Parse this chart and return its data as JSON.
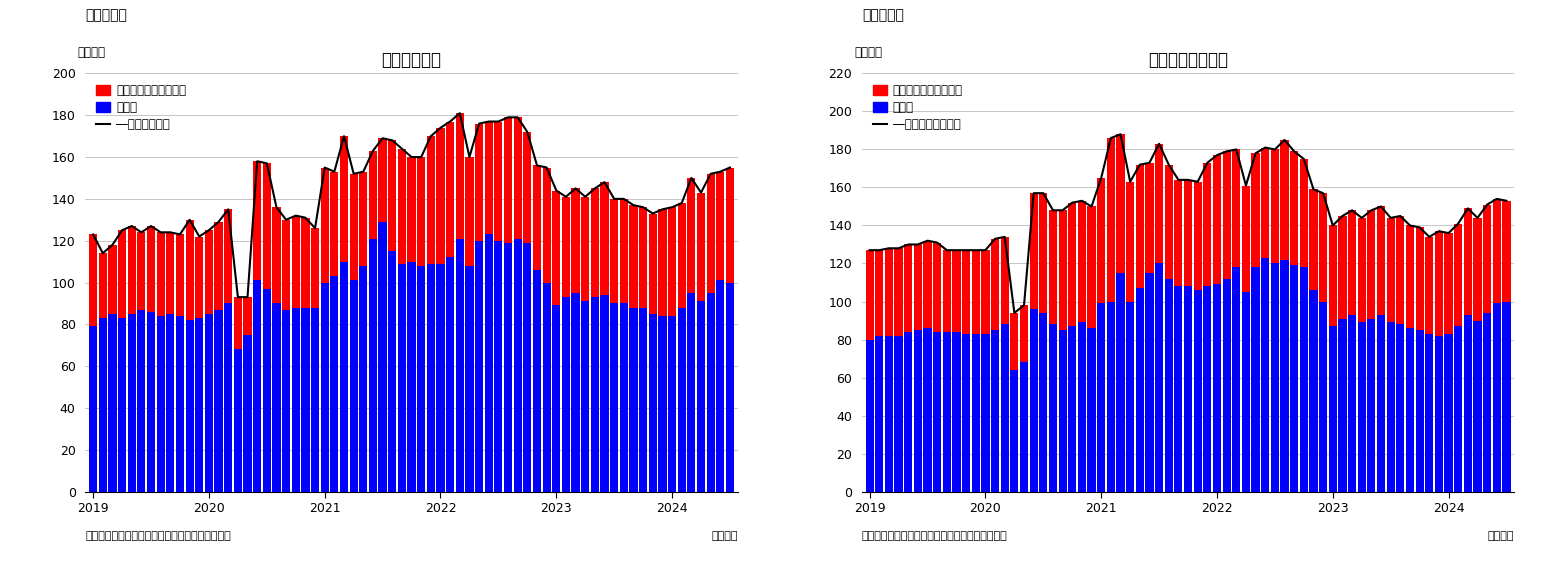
{
  "chart1": {
    "title": "住宅着工件数",
    "subtitle": "（図表１）",
    "ylabel": "（万件）",
    "footer_left": "（資料）センサス局よりニッセイ基礎研究所作成",
    "footer_right": "（月次）",
    "ylim": [
      0,
      200
    ],
    "yticks": [
      0,
      20,
      40,
      60,
      80,
      100,
      120,
      140,
      160,
      180,
      200
    ],
    "legend0": "集合住宅（二戸以上）",
    "legend1": "戸建て",
    "legend2": "住宅着工件数",
    "detached": [
      79,
      83,
      85,
      83,
      85,
      87,
      86,
      84,
      85,
      84,
      82,
      83,
      85,
      87,
      90,
      68,
      75,
      101,
      97,
      90,
      87,
      88,
      88,
      88,
      100,
      103,
      110,
      101,
      108,
      121,
      129,
      115,
      109,
      110,
      108,
      109,
      109,
      112,
      121,
      108,
      120,
      123,
      120,
      119,
      121,
      119,
      106,
      100,
      89,
      93,
      95,
      91,
      93,
      94,
      90,
      90,
      88,
      88,
      85,
      84,
      84,
      88,
      95,
      91,
      95,
      101,
      100
    ],
    "collective": [
      44,
      31,
      33,
      42,
      42,
      37,
      41,
      40,
      39,
      39,
      48,
      39,
      40,
      42,
      45,
      25,
      18,
      57,
      60,
      46,
      43,
      44,
      43,
      38,
      55,
      50,
      60,
      51,
      45,
      42,
      40,
      53,
      55,
      50,
      52,
      61,
      65,
      65,
      60,
      52,
      56,
      54,
      57,
      60,
      58,
      53,
      50,
      55,
      55,
      48,
      50,
      50,
      52,
      54,
      50,
      50,
      49,
      48,
      48,
      51,
      52,
      50,
      55,
      52,
      57,
      52,
      55
    ],
    "xtick_positions": [
      0,
      12,
      24,
      36,
      48,
      60
    ],
    "xtick_labels": [
      "2019",
      "2020",
      "2021",
      "2022",
      "2023",
      "2024"
    ]
  },
  "chart2": {
    "title": "住宅着工許可件数",
    "subtitle": "（図表２）",
    "ylabel": "（万件）",
    "footer_left": "（資料）センサス局よりニッセイ基礎研究所作成",
    "footer_right": "（月次）",
    "ylim": [
      0,
      220
    ],
    "yticks": [
      0,
      20,
      40,
      60,
      80,
      100,
      120,
      140,
      160,
      180,
      200,
      220
    ],
    "legend0": "集合住宅（二戸以上）",
    "legend1": "戸建て",
    "legend2": "住宅建築許可件数",
    "detached": [
      80,
      82,
      82,
      82,
      84,
      85,
      86,
      84,
      84,
      84,
      83,
      83,
      83,
      85,
      88,
      64,
      68,
      96,
      94,
      88,
      85,
      87,
      89,
      86,
      99,
      100,
      115,
      100,
      107,
      115,
      120,
      112,
      108,
      108,
      106,
      108,
      109,
      112,
      118,
      105,
      118,
      123,
      120,
      122,
      119,
      118,
      106,
      100,
      87,
      91,
      93,
      89,
      91,
      93,
      89,
      88,
      86,
      85,
      83,
      82,
      83,
      87,
      93,
      90,
      94,
      99,
      100
    ],
    "collective": [
      47,
      45,
      46,
      46,
      46,
      45,
      46,
      47,
      43,
      43,
      44,
      44,
      44,
      48,
      46,
      30,
      30,
      61,
      63,
      60,
      63,
      65,
      64,
      64,
      66,
      86,
      73,
      63,
      65,
      58,
      63,
      60,
      56,
      56,
      57,
      65,
      68,
      67,
      62,
      56,
      60,
      58,
      60,
      63,
      60,
      57,
      53,
      57,
      53,
      54,
      55,
      55,
      57,
      57,
      55,
      57,
      54,
      54,
      51,
      55,
      53,
      54,
      56,
      54,
      57,
      55,
      53
    ],
    "xtick_positions": [
      0,
      12,
      24,
      36,
      48,
      60
    ],
    "xtick_labels": [
      "2019",
      "2020",
      "2021",
      "2022",
      "2023",
      "2024"
    ]
  },
  "red": "#FF0000",
  "blue": "#0000FF",
  "black": "#000000",
  "gridcolor": "#BBBBBB",
  "bg": "#FFFFFF"
}
